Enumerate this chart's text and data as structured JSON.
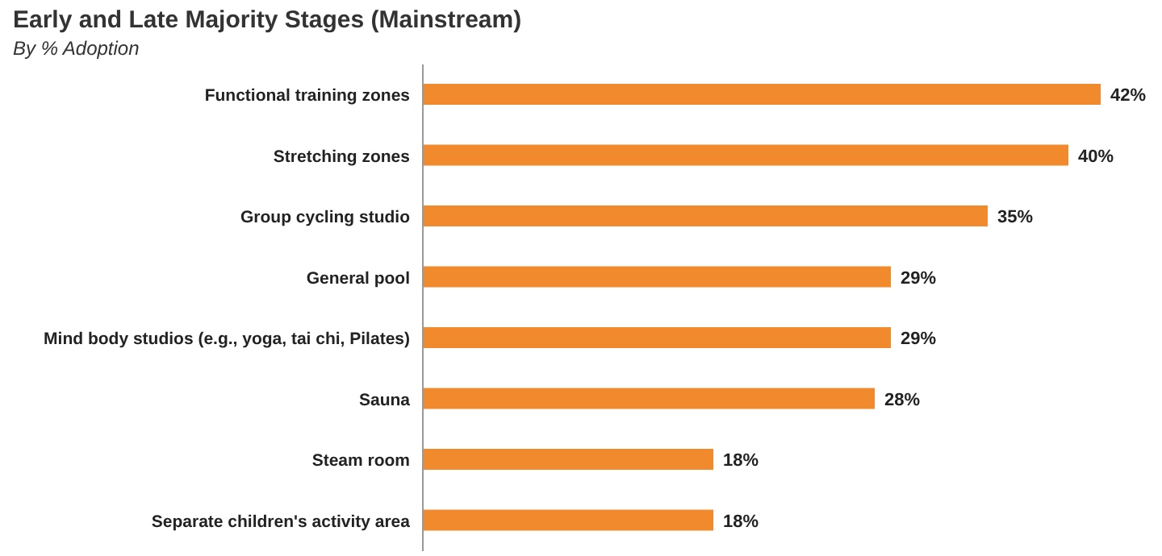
{
  "chart_data": {
    "type": "bar",
    "orientation": "horizontal",
    "title": "Early and Late Majority Stages (Mainstream)",
    "subtitle": "By % Adoption",
    "categories": [
      "Functional training zones",
      "Stretching zones",
      "Group cycling studio",
      "General pool",
      "Mind body studios (e.g., yoga, tai chi, Pilates)",
      "Sauna",
      "Steam room",
      "Separate children's activity area"
    ],
    "values": [
      42,
      40,
      35,
      29,
      29,
      28,
      18,
      18
    ],
    "color": "#f08a2c",
    "data_labels": true,
    "value_labels": [
      "42%",
      "40%",
      "35%",
      "29%",
      "29%",
      "28%",
      "18%",
      "18%"
    ]
  }
}
